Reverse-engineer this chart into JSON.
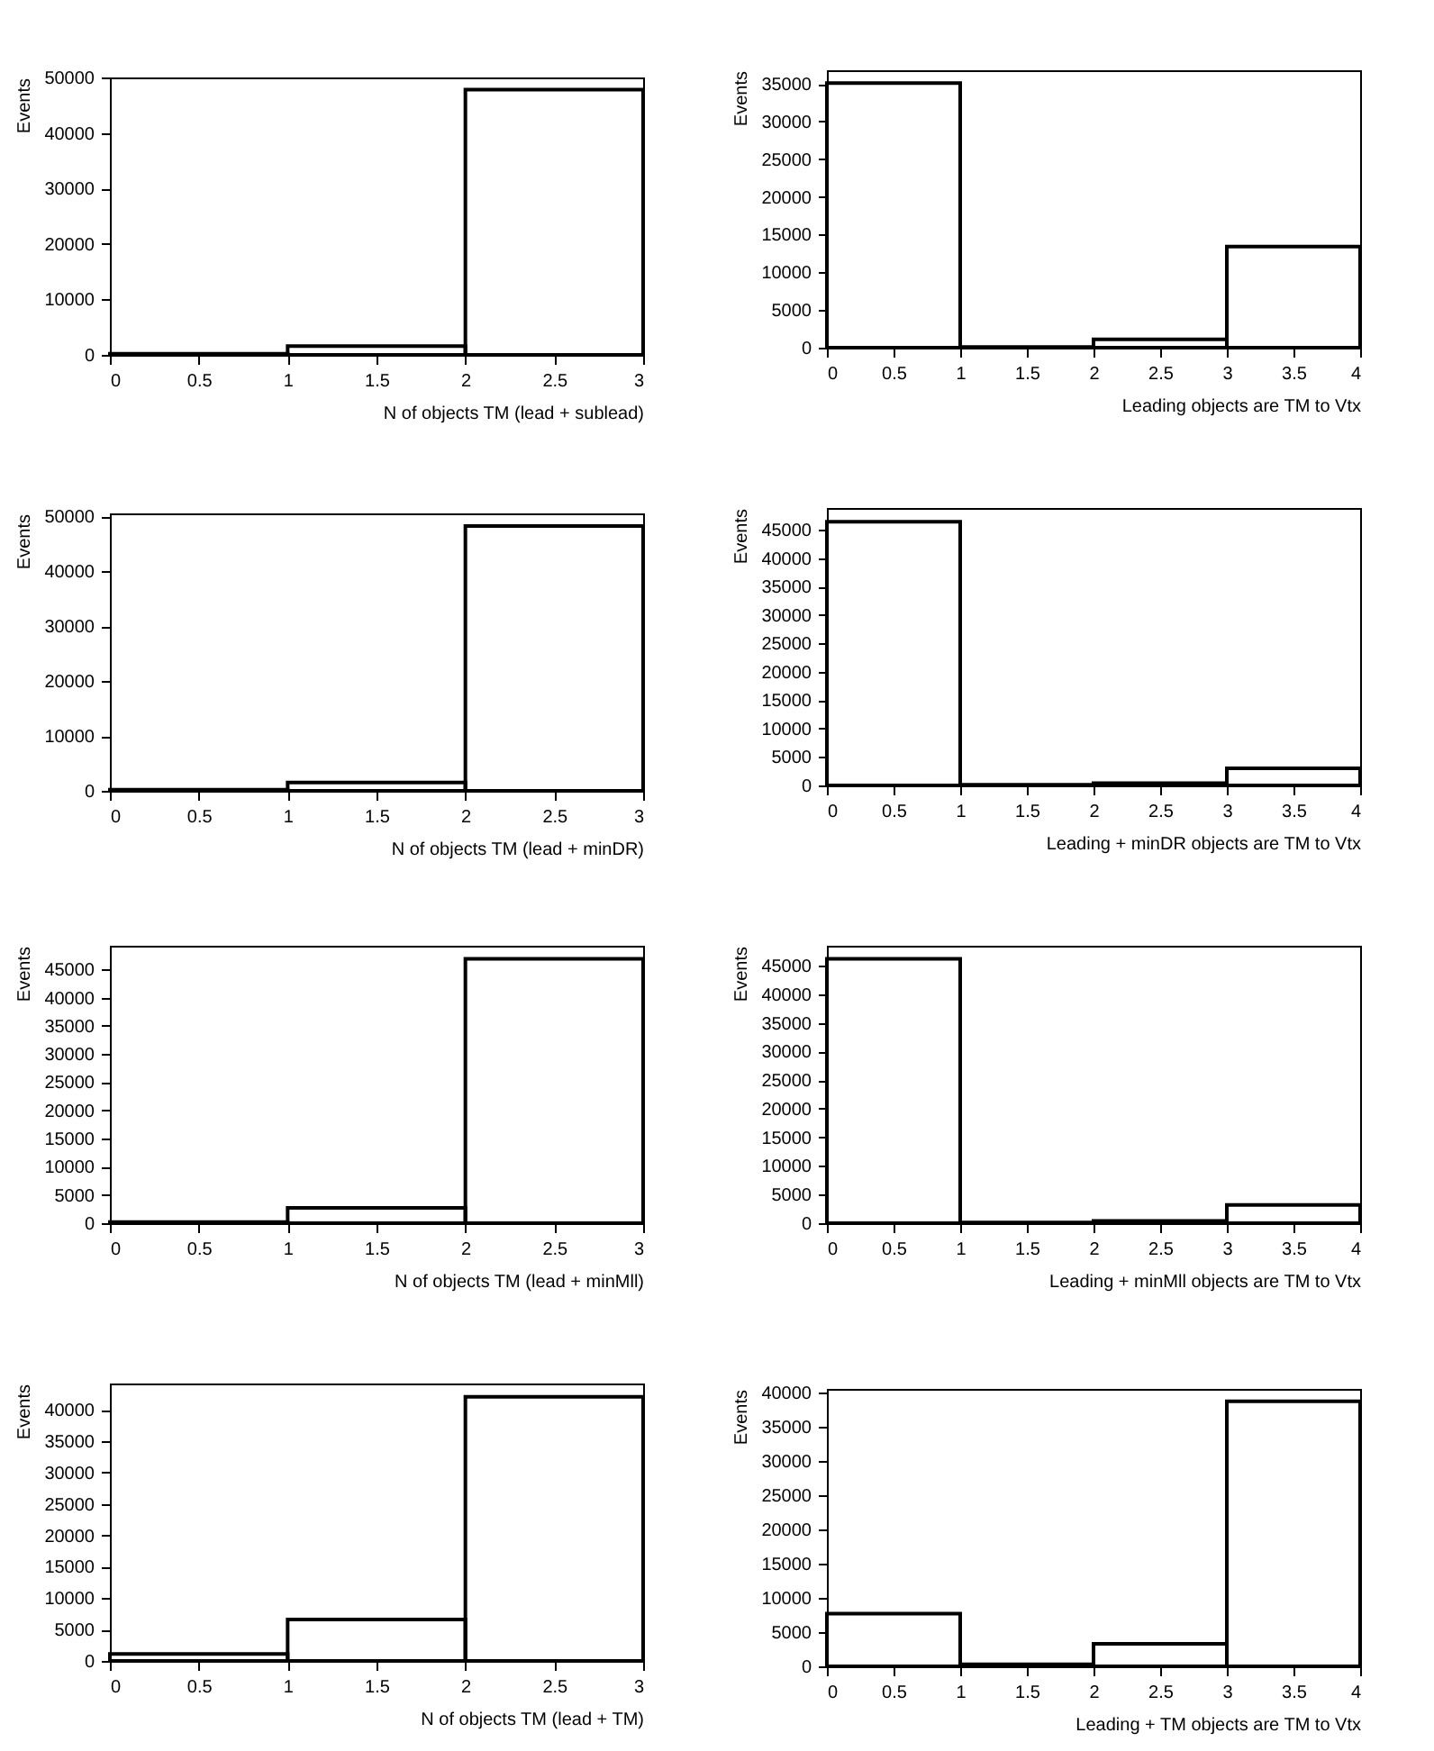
{
  "chart_data": [
    {
      "type": "histogram",
      "xlabel": "N of objects TM (lead + sublead)",
      "ylabel": "Events",
      "bins": [
        0,
        1,
        2,
        3
      ],
      "values": [
        200,
        1600,
        47800
      ],
      "color": "#000000",
      "xlim": [
        0,
        3
      ],
      "xticks": [
        0,
        0.5,
        1,
        1.5,
        2,
        2.5,
        3
      ],
      "ylim": [
        0,
        50000
      ],
      "yticks": [
        0,
        10000,
        20000,
        30000,
        40000,
        50000
      ]
    },
    {
      "type": "histogram",
      "xlabel": "Leading objects are TM to Vtx",
      "ylabel": "Events",
      "bins": [
        0,
        1,
        2,
        3,
        4
      ],
      "values": [
        35100,
        100,
        1100,
        13400
      ],
      "color": "#000000",
      "xlim": [
        0,
        4
      ],
      "xticks": [
        0,
        0.5,
        1,
        1.5,
        2,
        2.5,
        3,
        3.5,
        4
      ],
      "ylim": [
        0,
        36800
      ],
      "yticks": [
        0,
        5000,
        10000,
        15000,
        20000,
        25000,
        30000,
        35000
      ]
    },
    {
      "type": "histogram",
      "xlabel": "N of objects TM (lead + minDR)",
      "ylabel": "Events",
      "bins": [
        0,
        1,
        2,
        3
      ],
      "values": [
        200,
        1500,
        48200
      ],
      "color": "#000000",
      "xlim": [
        0,
        3
      ],
      "xticks": [
        0,
        0.5,
        1,
        1.5,
        2,
        2.5,
        3
      ],
      "ylim": [
        0,
        50500
      ],
      "yticks": [
        0,
        10000,
        20000,
        30000,
        40000,
        50000
      ]
    },
    {
      "type": "histogram",
      "xlabel": "Leading + minDR objects are TM to Vtx",
      "ylabel": "Events",
      "bins": [
        0,
        1,
        2,
        3,
        4
      ],
      "values": [
        46400,
        100,
        400,
        3000
      ],
      "color": "#000000",
      "xlim": [
        0,
        4
      ],
      "xticks": [
        0,
        0.5,
        1,
        1.5,
        2,
        2.5,
        3,
        3.5,
        4
      ],
      "ylim": [
        0,
        48800
      ],
      "yticks": [
        0,
        5000,
        10000,
        15000,
        20000,
        25000,
        30000,
        35000,
        40000,
        45000
      ]
    },
    {
      "type": "histogram",
      "xlabel": "N of objects TM (lead + minMll)",
      "ylabel": "Events",
      "bins": [
        0,
        1,
        2,
        3
      ],
      "values": [
        200,
        2700,
        46900
      ],
      "color": "#000000",
      "xlim": [
        0,
        3
      ],
      "xticks": [
        0,
        0.5,
        1,
        1.5,
        2,
        2.5,
        3
      ],
      "ylim": [
        0,
        49200
      ],
      "yticks": [
        0,
        5000,
        10000,
        15000,
        20000,
        25000,
        30000,
        35000,
        40000,
        45000
      ]
    },
    {
      "type": "histogram",
      "xlabel": "Leading + minMll objects are TM to Vtx",
      "ylabel": "Events",
      "bins": [
        0,
        1,
        2,
        3,
        4
      ],
      "values": [
        46200,
        100,
        400,
        3200
      ],
      "color": "#000000",
      "xlim": [
        0,
        4
      ],
      "xticks": [
        0,
        0.5,
        1,
        1.5,
        2,
        2.5,
        3,
        3.5,
        4
      ],
      "ylim": [
        0,
        48500
      ],
      "yticks": [
        0,
        5000,
        10000,
        15000,
        20000,
        25000,
        30000,
        35000,
        40000,
        45000
      ]
    },
    {
      "type": "histogram",
      "xlabel": "N of objects TM (lead + TM)",
      "ylabel": "Events",
      "bins": [
        0,
        1,
        2,
        3
      ],
      "values": [
        1100,
        6600,
        42100
      ],
      "color": "#000000",
      "xlim": [
        0,
        3
      ],
      "xticks": [
        0,
        0.5,
        1,
        1.5,
        2,
        2.5,
        3
      ],
      "ylim": [
        0,
        44200
      ],
      "yticks": [
        0,
        5000,
        10000,
        15000,
        20000,
        25000,
        30000,
        35000,
        40000
      ]
    },
    {
      "type": "histogram",
      "xlabel": "Leading + TM objects are TM to Vtx",
      "ylabel": "Events",
      "bins": [
        0,
        1,
        2,
        3,
        4
      ],
      "values": [
        7700,
        300,
        3300,
        38700
      ],
      "color": "#000000",
      "xlim": [
        0,
        4
      ],
      "xticks": [
        0,
        0.5,
        1,
        1.5,
        2,
        2.5,
        3,
        3.5,
        4
      ],
      "ylim": [
        0,
        40500
      ],
      "yticks": [
        0,
        5000,
        10000,
        15000,
        20000,
        25000,
        30000,
        35000,
        40000
      ]
    }
  ]
}
